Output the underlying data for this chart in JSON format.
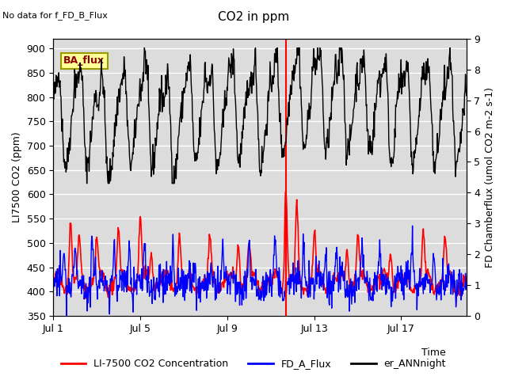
{
  "title": "CO2 in ppm",
  "no_data_text": "No data for f_FD_B_Flux",
  "ba_flux_label": "BA_flux",
  "xlabel": "Time",
  "ylabel_left": "LI7500 CO2 (ppm)",
  "ylabel_right": "FD Chamberflux (umol CO2 m-2 s-1)",
  "ylim_left": [
    350,
    920
  ],
  "ylim_right": [
    0.0,
    9.0
  ],
  "yticks_left": [
    350,
    400,
    450,
    500,
    550,
    600,
    650,
    700,
    750,
    800,
    850,
    900
  ],
  "yticks_right": [
    0.0,
    1.0,
    2.0,
    3.0,
    4.0,
    5.0,
    6.0,
    7.0,
    8.0,
    9.0
  ],
  "xtick_labels": [
    "Jul 1",
    "Jul 5",
    "Jul 9",
    "Jul 13",
    "Jul 17"
  ],
  "xtick_positions": [
    0,
    4,
    8,
    12,
    16
  ],
  "xrange": [
    0,
    19
  ],
  "color_red": "#FF0000",
  "color_blue": "#0000FF",
  "color_black": "#000000",
  "legend_labels": [
    "LI-7500 CO2 Concentration",
    "FD_A_Flux",
    "er_ANNnight"
  ],
  "bg_color": "#DCDCDC",
  "ba_flux_bg": "#FFFF99",
  "ba_flux_border": "#999900",
  "vertical_line_x": 10.7,
  "vertical_line_color": "#FF0000",
  "lw_red": 1.2,
  "lw_blue": 1.0,
  "lw_black": 1.0,
  "title_fontsize": 11,
  "label_fontsize": 9,
  "legend_fontsize": 9
}
